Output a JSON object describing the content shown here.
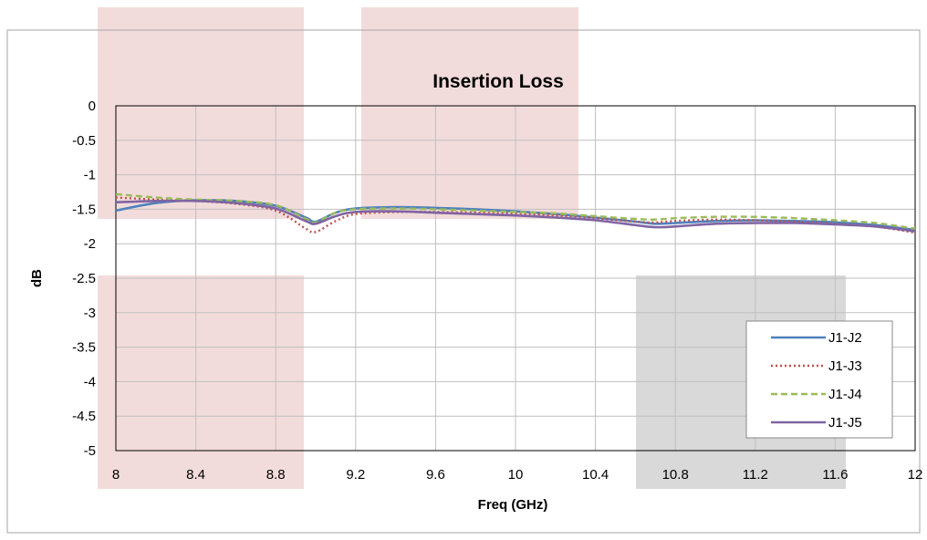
{
  "chart_data": {
    "type": "line",
    "title": "Insertion Loss",
    "xlabel": "Freq (GHz)",
    "ylabel": "dB",
    "xlim": [
      8,
      12
    ],
    "ylim": [
      -5,
      0
    ],
    "x_ticks": [
      "8",
      "8.4",
      "8.8",
      "9.2",
      "9.6",
      "10",
      "10.4",
      "10.8",
      "11.2",
      "11.6",
      "12"
    ],
    "y_ticks": [
      "0",
      "-0.5",
      "-1",
      "-1.5",
      "-2",
      "-2.5",
      "-3",
      "-3.5",
      "-4",
      "-4.5",
      "-5"
    ],
    "grid": true,
    "legend_position": "bottom-right",
    "colors": {
      "band_pink": "#f2dcdb",
      "band_gray": "#d9d9d9"
    },
    "series": [
      {
        "name": "J1-J2",
        "color": "#4f81bd",
        "dash": "solid",
        "x": [
          8,
          8.2,
          8.4,
          8.6,
          8.8,
          8.95,
          9.0,
          9.1,
          9.2,
          9.4,
          9.6,
          9.8,
          10,
          10.2,
          10.4,
          10.6,
          10.7,
          10.8,
          11.0,
          11.2,
          11.4,
          11.6,
          11.8,
          12
        ],
        "y": [
          -1.52,
          -1.41,
          -1.37,
          -1.38,
          -1.45,
          -1.62,
          -1.68,
          -1.55,
          -1.49,
          -1.47,
          -1.48,
          -1.5,
          -1.53,
          -1.57,
          -1.62,
          -1.68,
          -1.71,
          -1.7,
          -1.67,
          -1.66,
          -1.67,
          -1.69,
          -1.73,
          -1.8
        ]
      },
      {
        "name": "J1-J3",
        "color": "#c0504d",
        "dash": "dotted",
        "x": [
          8,
          8.2,
          8.4,
          8.6,
          8.8,
          8.95,
          9.0,
          9.1,
          9.2,
          9.4,
          9.6,
          9.8,
          10,
          10.2,
          10.4,
          10.6,
          10.7,
          10.8,
          11.0,
          11.2,
          11.4,
          11.6,
          11.8,
          12
        ],
        "y": [
          -1.33,
          -1.36,
          -1.38,
          -1.42,
          -1.52,
          -1.78,
          -1.83,
          -1.67,
          -1.57,
          -1.54,
          -1.54,
          -1.55,
          -1.56,
          -1.59,
          -1.63,
          -1.68,
          -1.69,
          -1.67,
          -1.65,
          -1.66,
          -1.68,
          -1.71,
          -1.75,
          -1.84
        ]
      },
      {
        "name": "J1-J4",
        "color": "#9bbb59",
        "dash": "dashed",
        "x": [
          8,
          8.2,
          8.4,
          8.6,
          8.8,
          8.95,
          9.0,
          9.1,
          9.2,
          9.4,
          9.6,
          9.8,
          10,
          10.2,
          10.4,
          10.6,
          10.7,
          10.8,
          11.0,
          11.2,
          11.4,
          11.6,
          11.8,
          12
        ],
        "y": [
          -1.28,
          -1.33,
          -1.36,
          -1.38,
          -1.44,
          -1.64,
          -1.69,
          -1.55,
          -1.5,
          -1.49,
          -1.5,
          -1.52,
          -1.54,
          -1.56,
          -1.6,
          -1.64,
          -1.65,
          -1.63,
          -1.61,
          -1.61,
          -1.63,
          -1.66,
          -1.7,
          -1.78
        ]
      },
      {
        "name": "J1-J5",
        "color": "#8064a2",
        "dash": "solid",
        "x": [
          8,
          8.2,
          8.4,
          8.6,
          8.8,
          8.95,
          9.0,
          9.1,
          9.2,
          9.4,
          9.6,
          9.8,
          10,
          10.2,
          10.4,
          10.6,
          10.7,
          10.8,
          11.0,
          11.2,
          11.4,
          11.6,
          11.8,
          12
        ],
        "y": [
          -1.4,
          -1.38,
          -1.38,
          -1.41,
          -1.49,
          -1.67,
          -1.71,
          -1.6,
          -1.54,
          -1.53,
          -1.55,
          -1.57,
          -1.59,
          -1.62,
          -1.66,
          -1.73,
          -1.76,
          -1.75,
          -1.71,
          -1.7,
          -1.7,
          -1.72,
          -1.75,
          -1.82
        ]
      }
    ]
  }
}
